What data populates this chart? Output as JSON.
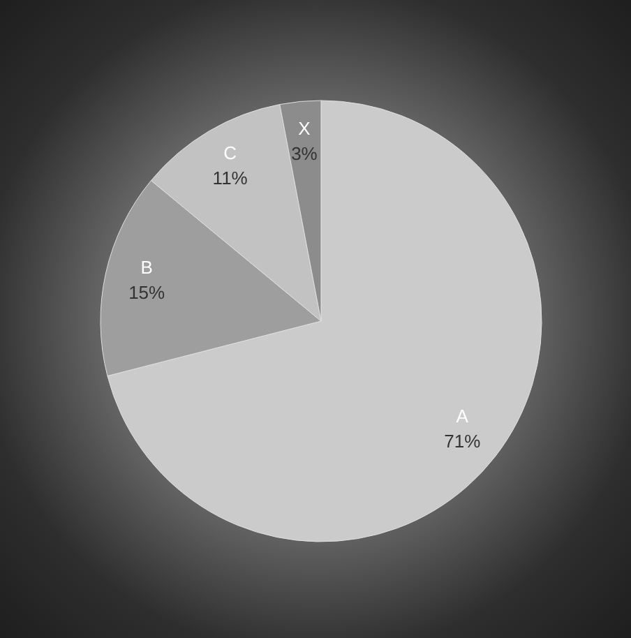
{
  "chart_data": {
    "type": "pie",
    "categories": [
      "A",
      "B",
      "C",
      "X"
    ],
    "values": [
      71,
      15,
      11,
      3
    ],
    "colors": [
      "#cbcbcb",
      "#9e9e9e",
      "#c2c2c2",
      "#8c8c8c"
    ],
    "value_labels": [
      "71%",
      "15%",
      "11%",
      "3%"
    ]
  }
}
